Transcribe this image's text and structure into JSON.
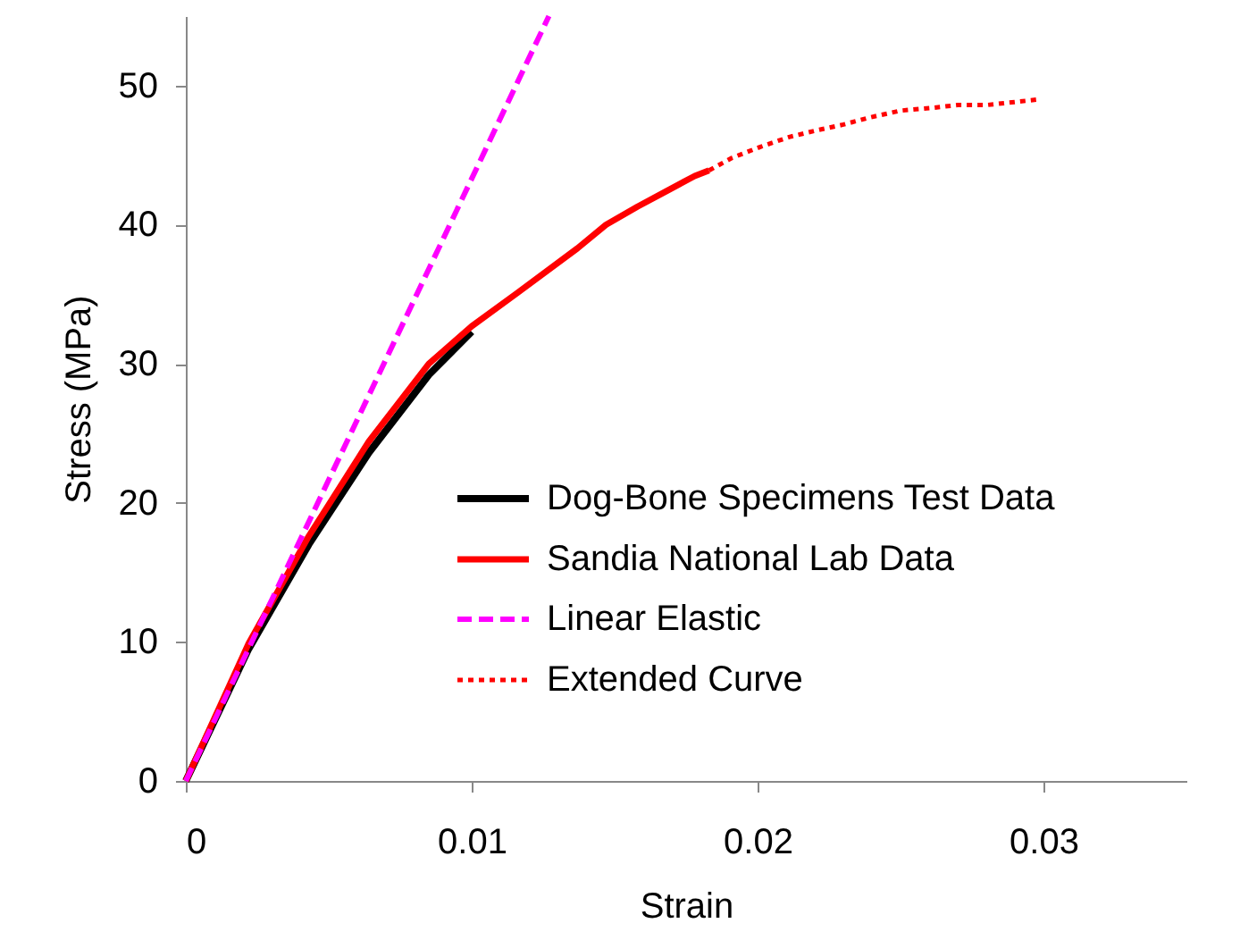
{
  "chart_data": {
    "type": "line",
    "xlabel": "Strain",
    "ylabel": "Stress (MPa)",
    "xlim": [
      0,
      0.035
    ],
    "xticks": [
      0,
      0.01,
      0.02,
      0.03
    ],
    "ylim": [
      0,
      55
    ],
    "yticks": [
      0,
      10,
      20,
      30,
      40,
      50
    ],
    "grid": false,
    "legend": "bottom right",
    "marker": "none",
    "series": [
      {
        "name": "Dog-Bone Specimens Test Data",
        "color": "#000000",
        "line_style": "solid",
        "x": [
          0,
          0.0022,
          0.0043,
          0.0064,
          0.0085,
          0.01
        ],
        "values": [
          0,
          9.5,
          17.0,
          23.6,
          29.2,
          32.3
        ]
      },
      {
        "name": "Sandia National Lab Data",
        "color": "#ff0000",
        "line_style": "solid",
        "x": [
          0,
          0.0022,
          0.0043,
          0.0064,
          0.0085,
          0.01,
          0.0116,
          0.0137,
          0.0147,
          0.0158,
          0.0168,
          0.0178,
          0.0183
        ],
        "values": [
          0,
          9.9,
          17.6,
          24.4,
          30.0,
          32.7,
          35.1,
          38.3,
          40.0,
          41.3,
          42.4,
          43.5,
          43.9
        ]
      },
      {
        "name": "Linear Elastic",
        "color": "#ff00ff",
        "line_style": "dashed",
        "x": [
          0,
          0.0127
        ],
        "values": [
          0,
          55
        ]
      },
      {
        "name": "Extended Curve",
        "color": "#ff0000",
        "line_style": "dotted",
        "x": [
          0.0183,
          0.0191,
          0.0201,
          0.0211,
          0.0221,
          0.023,
          0.0239,
          0.025,
          0.0261,
          0.027,
          0.028,
          0.0289,
          0.0298
        ],
        "values": [
          43.9,
          44.8,
          45.6,
          46.3,
          46.8,
          47.2,
          47.7,
          48.2,
          48.4,
          48.6,
          48.6,
          48.8,
          49.0
        ]
      }
    ]
  }
}
